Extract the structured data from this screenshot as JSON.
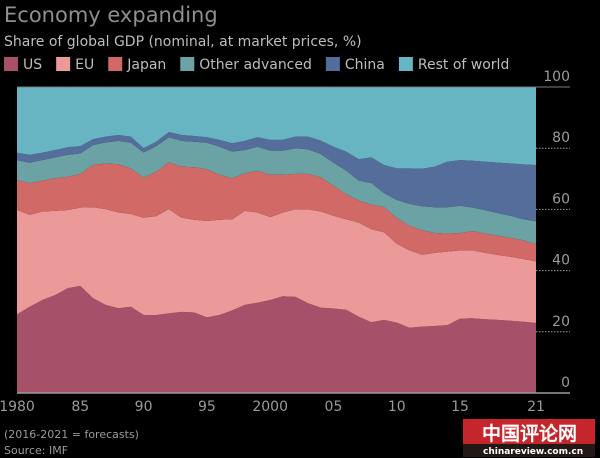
{
  "chart_data": {
    "type": "area",
    "stacked": true,
    "title": "Economy expanding",
    "subtitle": "Share of global GDP (nominal, at market prices, %)",
    "x": [
      1980,
      1981,
      1982,
      1983,
      1984,
      1985,
      1986,
      1987,
      1988,
      1989,
      1990,
      1991,
      1992,
      1993,
      1994,
      1995,
      1996,
      1997,
      1998,
      1999,
      2000,
      2001,
      2002,
      2003,
      2004,
      2005,
      2006,
      2007,
      2008,
      2009,
      2010,
      2011,
      2012,
      2013,
      2014,
      2015,
      2016,
      2017,
      2018,
      2019,
      2020,
      2021
    ],
    "xlim": [
      1980,
      2021
    ],
    "ylim": [
      0,
      100
    ],
    "x_ticks": [
      {
        "value": 1980,
        "label": "1980"
      },
      {
        "value": 1985,
        "label": "85"
      },
      {
        "value": 1990,
        "label": "90"
      },
      {
        "value": 1995,
        "label": "95"
      },
      {
        "value": 2000,
        "label": "2000"
      },
      {
        "value": 2005,
        "label": "05"
      },
      {
        "value": 2010,
        "label": "10"
      },
      {
        "value": 2015,
        "label": "15"
      },
      {
        "value": 2021,
        "label": "21"
      }
    ],
    "y_ticks": [
      {
        "value": 0,
        "label": "0"
      },
      {
        "value": 20,
        "label": "20"
      },
      {
        "value": 40,
        "label": "40"
      },
      {
        "value": 60,
        "label": "60"
      },
      {
        "value": 80,
        "label": "80"
      },
      {
        "value": 100,
        "label": "100"
      }
    ],
    "y_axis_side": "right",
    "grid": "dotted y-gridlines right of plot",
    "legend_placement": "top",
    "series": [
      {
        "name": "US",
        "color": "#a65169",
        "values": [
          25.7,
          28.2,
          30.4,
          32.0,
          34.2,
          35.0,
          31.0,
          28.8,
          27.7,
          28.2,
          25.5,
          25.5,
          26.0,
          26.5,
          26.3,
          24.7,
          25.5,
          27.0,
          28.8,
          29.5,
          30.4,
          31.6,
          31.4,
          29.3,
          27.9,
          27.6,
          27.2,
          24.9,
          23.1,
          23.9,
          23.0,
          21.3,
          21.7,
          21.9,
          22.2,
          24.3,
          24.4,
          24.1,
          23.9,
          23.6,
          23.3,
          22.9
        ]
      },
      {
        "name": "EU",
        "color": "#ec9a99",
        "values": [
          34.1,
          30.0,
          28.9,
          27.5,
          25.6,
          25.6,
          29.7,
          31.3,
          31.3,
          30.3,
          31.8,
          32.3,
          34.1,
          30.8,
          30.3,
          31.5,
          31.1,
          29.8,
          30.7,
          29.5,
          27.1,
          27.4,
          28.7,
          30.7,
          31.4,
          30.3,
          29.6,
          30.8,
          30.4,
          28.6,
          25.8,
          25.3,
          23.5,
          23.9,
          24.0,
          22.3,
          22.2,
          21.7,
          21.2,
          20.9,
          20.5,
          20.1
        ]
      },
      {
        "name": "Japan",
        "color": "#d16966",
        "values": [
          9.8,
          10.4,
          10.1,
          10.7,
          10.9,
          11.0,
          13.8,
          14.9,
          15.8,
          14.9,
          13.1,
          14.5,
          15.3,
          16.7,
          17.2,
          16.9,
          14.7,
          13.4,
          12.3,
          13.6,
          13.8,
          12.3,
          11.5,
          11.6,
          11.2,
          9.8,
          8.2,
          7.2,
          8.0,
          8.3,
          8.4,
          8.1,
          8.0,
          6.5,
          5.9,
          5.7,
          6.3,
          6.3,
          6.3,
          6.2,
          6.1,
          5.7
        ]
      },
      {
        "name": "Other advanced",
        "color": "#6ba3a5",
        "values": [
          6.5,
          6.7,
          6.7,
          6.8,
          7.1,
          6.7,
          6.5,
          6.9,
          7.6,
          8.4,
          8.2,
          8.4,
          8.2,
          8.4,
          8.3,
          8.7,
          9.2,
          8.7,
          7.6,
          7.9,
          7.9,
          7.9,
          8.4,
          8.0,
          7.6,
          7.6,
          7.7,
          6.5,
          7.1,
          4.5,
          5.9,
          7.1,
          7.8,
          8.4,
          8.6,
          8.9,
          7.7,
          7.6,
          7.4,
          7.2,
          6.9,
          7.4
        ]
      },
      {
        "name": "China",
        "color": "#556d9a",
        "values": [
          2.4,
          2.5,
          2.4,
          2.4,
          2.5,
          2.4,
          1.9,
          1.9,
          1.9,
          2.0,
          1.4,
          1.4,
          1.7,
          1.9,
          1.9,
          1.8,
          2.2,
          2.7,
          3.0,
          3.1,
          3.5,
          3.5,
          3.8,
          4.2,
          4.4,
          5.2,
          6.2,
          7.0,
          8.4,
          9.2,
          10.3,
          11.6,
          12.3,
          13.3,
          14.9,
          14.9,
          15.3,
          15.9,
          16.5,
          17.1,
          17.9,
          18.4
        ]
      },
      {
        "name": "Rest of world",
        "color": "#67b5c3",
        "values": [
          21.5,
          22.2,
          21.5,
          20.6,
          19.7,
          19.3,
          17.1,
          16.2,
          15.7,
          16.2,
          20.0,
          17.9,
          14.7,
          15.7,
          16.0,
          16.4,
          17.3,
          18.4,
          17.6,
          16.4,
          17.3,
          17.3,
          16.2,
          16.2,
          17.5,
          19.5,
          21.1,
          23.6,
          23.0,
          25.5,
          26.6,
          26.6,
          26.7,
          26.0,
          24.4,
          23.9,
          24.1,
          24.4,
          24.7,
          25.0,
          25.3,
          25.5
        ]
      }
    ],
    "annotations": [
      "(2016-2021 = forecasts)",
      "Source: IMF"
    ]
  },
  "footer": {
    "note": "(2016-2021 = forecasts)",
    "source": "Source: IMF"
  },
  "watermark": {
    "text_cn": "中国评论网",
    "text_url": "chinareview.com.cn",
    "color": "#c4262b"
  },
  "colors": {
    "background": "#000000",
    "text": "#bdbdbd",
    "axis": "#9a9a9a"
  }
}
